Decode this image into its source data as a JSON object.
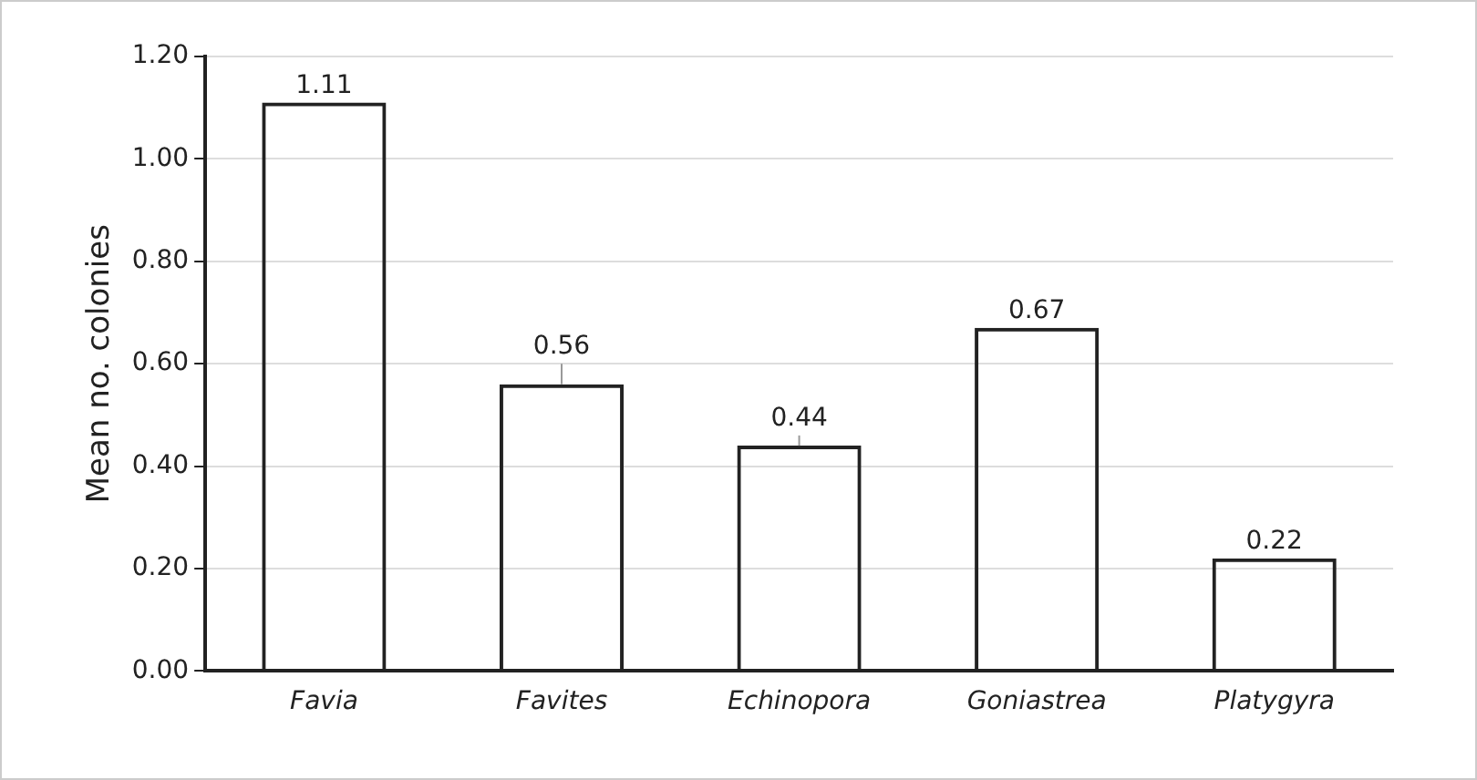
{
  "chart_data": {
    "type": "bar",
    "ylabel": "Mean no. colonies",
    "categories": [
      "Favia",
      "Favites",
      "Echinopora",
      "Goniastrea",
      "Platygyra"
    ],
    "values": [
      1.11,
      0.56,
      0.44,
      0.67,
      0.22
    ],
    "errors": [
      null,
      [
        0.56,
        0.6
      ],
      [
        0.44,
        0.46
      ],
      null,
      null
    ],
    "color": "#222222",
    "ylim": [
      0,
      1.2
    ],
    "yticks": [
      {
        "value": 0,
        "label": "0.00"
      },
      {
        "value": 0.2,
        "label": "0.20"
      },
      {
        "value": 0.4,
        "label": "0.40"
      },
      {
        "value": 0.6,
        "label": "0.60"
      },
      {
        "value": 0.8,
        "label": "0.80"
      },
      {
        "value": 1,
        "label": "1.00"
      },
      {
        "value": 1.2,
        "label": "1.20"
      }
    ],
    "grid": "y",
    "data_labels": true
  }
}
